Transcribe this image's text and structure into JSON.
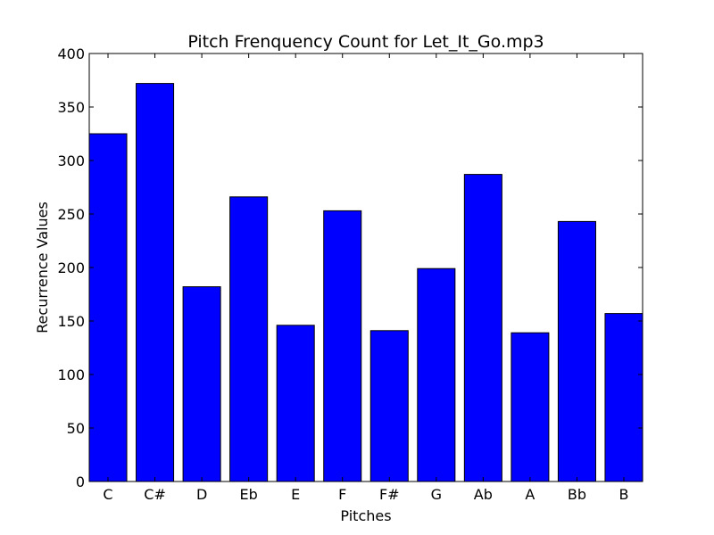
{
  "chart_data": {
    "type": "bar",
    "title": "Pitch Frenquency Count for Let_It_Go.mp3",
    "xlabel": "Pitches",
    "ylabel": "Recurrence Values",
    "categories": [
      "C",
      "C#",
      "D",
      "Eb",
      "E",
      "F",
      "F#",
      "G",
      "Ab",
      "A",
      "Bb",
      "B"
    ],
    "values": [
      325,
      372,
      182,
      266,
      146,
      253,
      141,
      199,
      287,
      139,
      243,
      157
    ],
    "ylim": [
      0,
      400
    ],
    "yticks": [
      0,
      50,
      100,
      150,
      200,
      250,
      300,
      350,
      400
    ],
    "bar_color": "#0000ff",
    "edge_color": "#000000",
    "grid": false,
    "legend": "none"
  }
}
